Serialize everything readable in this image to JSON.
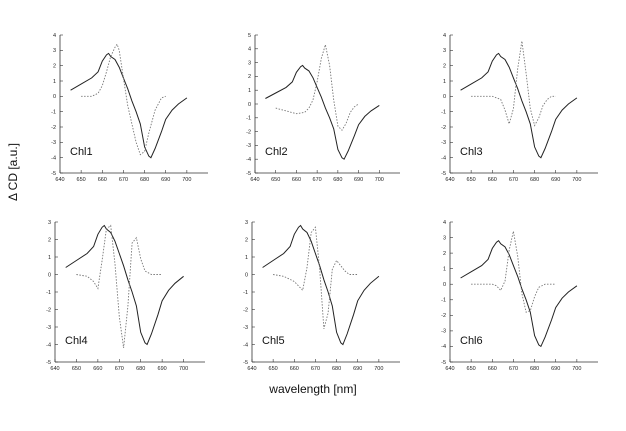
{
  "figure": {
    "ylabel": "Δ CD [a.u.]",
    "xlabel": "wavelength [nm]"
  },
  "chart_data": [
    {
      "type": "line",
      "panel": "Chl1",
      "label": "Chl1",
      "xlim": [
        640,
        710
      ],
      "ylim": [
        -5,
        4
      ],
      "xticks": [
        640,
        650,
        660,
        670,
        680,
        690,
        700
      ],
      "yticks": [
        -5,
        -4,
        -3,
        -2,
        -1,
        0,
        1,
        2,
        3,
        4
      ],
      "series": [
        {
          "style": "solid",
          "x": [
            645,
            650,
            655,
            658,
            660,
            662,
            663,
            664,
            666,
            668,
            670,
            672,
            674,
            676,
            678,
            680,
            682,
            683,
            685,
            688,
            690,
            693,
            696,
            700
          ],
          "y": [
            0.4,
            0.8,
            1.2,
            1.6,
            2.3,
            2.7,
            2.8,
            2.6,
            2.4,
            1.9,
            1.2,
            0.5,
            -0.3,
            -1.0,
            -1.8,
            -3.3,
            -3.9,
            -4.0,
            -3.4,
            -2.3,
            -1.5,
            -0.9,
            -0.5,
            -0.1
          ]
        },
        {
          "style": "dotted",
          "x": [
            650,
            655,
            658,
            660,
            662,
            664,
            666,
            667,
            668,
            670,
            672,
            674,
            676,
            678,
            680,
            682,
            685,
            688,
            690
          ],
          "y": [
            0.0,
            0.0,
            0.2,
            0.7,
            1.6,
            2.6,
            3.2,
            3.4,
            3.0,
            1.2,
            -0.6,
            -1.8,
            -3.0,
            -3.8,
            -3.6,
            -2.4,
            -0.9,
            -0.1,
            0.0
          ]
        }
      ]
    },
    {
      "type": "line",
      "panel": "Chl2",
      "label": "Chl2",
      "xlim": [
        640,
        710
      ],
      "ylim": [
        -5,
        5
      ],
      "xticks": [
        640,
        650,
        660,
        670,
        680,
        690,
        700
      ],
      "yticks": [
        -5,
        -4,
        -3,
        -2,
        -1,
        0,
        1,
        2,
        3,
        4,
        5
      ],
      "series": [
        {
          "style": "solid",
          "x": [
            645,
            650,
            655,
            658,
            660,
            662,
            663,
            664,
            666,
            668,
            670,
            672,
            674,
            676,
            678,
            680,
            682,
            683,
            685,
            688,
            690,
            693,
            696,
            700
          ],
          "y": [
            0.4,
            0.8,
            1.2,
            1.6,
            2.3,
            2.7,
            2.8,
            2.6,
            2.4,
            1.9,
            1.2,
            0.5,
            -0.3,
            -1.0,
            -1.8,
            -3.3,
            -3.9,
            -4.0,
            -3.4,
            -2.3,
            -1.5,
            -0.9,
            -0.5,
            -0.1
          ]
        },
        {
          "style": "dotted",
          "x": [
            650,
            655,
            660,
            664,
            666,
            668,
            670,
            672,
            674,
            676,
            678,
            680,
            682,
            684,
            686,
            688,
            690
          ],
          "y": [
            -0.3,
            -0.5,
            -0.7,
            -0.6,
            -0.3,
            0.3,
            1.6,
            3.3,
            4.3,
            2.8,
            0.3,
            -1.6,
            -1.9,
            -1.4,
            -0.6,
            -0.2,
            0.0
          ]
        }
      ]
    },
    {
      "type": "line",
      "panel": "Chl3",
      "label": "Chl3",
      "xlim": [
        640,
        710
      ],
      "ylim": [
        -5,
        4
      ],
      "xticks": [
        640,
        650,
        660,
        670,
        680,
        690,
        700
      ],
      "yticks": [
        -5,
        -4,
        -3,
        -2,
        -1,
        0,
        1,
        2,
        3,
        4
      ],
      "series": [
        {
          "style": "solid",
          "x": [
            645,
            650,
            655,
            658,
            660,
            662,
            663,
            664,
            666,
            668,
            670,
            672,
            674,
            676,
            678,
            680,
            682,
            683,
            685,
            688,
            690,
            693,
            696,
            700
          ],
          "y": [
            0.4,
            0.8,
            1.2,
            1.6,
            2.3,
            2.7,
            2.8,
            2.6,
            2.4,
            1.9,
            1.2,
            0.5,
            -0.3,
            -1.0,
            -1.8,
            -3.3,
            -3.9,
            -4.0,
            -3.4,
            -2.3,
            -1.5,
            -0.9,
            -0.5,
            -0.1
          ]
        },
        {
          "style": "dotted",
          "x": [
            650,
            655,
            660,
            664,
            666,
            668,
            670,
            672,
            674,
            676,
            678,
            680,
            682,
            684,
            686,
            688,
            690
          ],
          "y": [
            0.0,
            0.0,
            0.0,
            -0.2,
            -0.9,
            -1.8,
            -0.8,
            1.8,
            3.6,
            1.5,
            -0.8,
            -1.9,
            -1.4,
            -0.6,
            -0.2,
            0.0,
            0.0
          ]
        }
      ]
    },
    {
      "type": "line",
      "panel": "Chl4",
      "label": "Chl4",
      "xlim": [
        640,
        710
      ],
      "ylim": [
        -5,
        3
      ],
      "xticks": [
        640,
        650,
        660,
        670,
        680,
        690,
        700
      ],
      "yticks": [
        -5,
        -4,
        -3,
        -2,
        -1,
        0,
        1,
        2,
        3
      ],
      "series": [
        {
          "style": "solid",
          "x": [
            645,
            650,
            655,
            658,
            660,
            662,
            663,
            664,
            666,
            668,
            670,
            672,
            674,
            676,
            678,
            680,
            682,
            683,
            685,
            688,
            690,
            693,
            696,
            700
          ],
          "y": [
            0.4,
            0.8,
            1.2,
            1.6,
            2.3,
            2.7,
            2.8,
            2.6,
            2.4,
            1.9,
            1.2,
            0.5,
            -0.3,
            -1.0,
            -1.8,
            -3.3,
            -3.9,
            -4.0,
            -3.4,
            -2.3,
            -1.5,
            -0.9,
            -0.5,
            -0.1
          ]
        },
        {
          "style": "dotted",
          "x": [
            650,
            655,
            658,
            660,
            662,
            664,
            666,
            668,
            670,
            672,
            674,
            676,
            678,
            680,
            682,
            685,
            688,
            690
          ],
          "y": [
            0.0,
            -0.1,
            -0.4,
            -0.8,
            0.8,
            2.6,
            2.8,
            0.6,
            -2.4,
            -4.2,
            -1.8,
            1.8,
            2.1,
            0.9,
            0.2,
            0.0,
            0.0,
            0.0
          ]
        }
      ]
    },
    {
      "type": "line",
      "panel": "Chl5",
      "label": "Chl5",
      "xlim": [
        640,
        710
      ],
      "ylim": [
        -5,
        3
      ],
      "xticks": [
        640,
        650,
        660,
        670,
        680,
        690,
        700
      ],
      "yticks": [
        -5,
        -4,
        -3,
        -2,
        -1,
        0,
        1,
        2,
        3
      ],
      "series": [
        {
          "style": "solid",
          "x": [
            645,
            650,
            655,
            658,
            660,
            662,
            663,
            664,
            666,
            668,
            670,
            672,
            674,
            676,
            678,
            680,
            682,
            683,
            685,
            688,
            690,
            693,
            696,
            700
          ],
          "y": [
            0.4,
            0.8,
            1.2,
            1.6,
            2.3,
            2.7,
            2.8,
            2.6,
            2.4,
            1.9,
            1.2,
            0.5,
            -0.3,
            -1.0,
            -1.8,
            -3.3,
            -3.9,
            -4.0,
            -3.4,
            -2.3,
            -1.5,
            -0.9,
            -0.5,
            -0.1
          ]
        },
        {
          "style": "dotted",
          "x": [
            650,
            655,
            660,
            664,
            666,
            668,
            670,
            672,
            674,
            676,
            678,
            680,
            682,
            684,
            686,
            688,
            690
          ],
          "y": [
            0.0,
            -0.1,
            -0.4,
            -0.9,
            0.4,
            2.4,
            2.7,
            0.3,
            -3.1,
            -2.2,
            0.3,
            0.8,
            0.5,
            0.2,
            0.0,
            0.0,
            0.0
          ]
        }
      ]
    },
    {
      "type": "line",
      "panel": "Chl6",
      "label": "Chl6",
      "xlim": [
        640,
        710
      ],
      "ylim": [
        -5,
        4
      ],
      "xticks": [
        640,
        650,
        660,
        670,
        680,
        690,
        700
      ],
      "yticks": [
        -5,
        -4,
        -3,
        -2,
        -1,
        0,
        1,
        2,
        3,
        4
      ],
      "series": [
        {
          "style": "solid",
          "x": [
            645,
            650,
            655,
            658,
            660,
            662,
            663,
            664,
            666,
            668,
            670,
            672,
            674,
            676,
            678,
            680,
            682,
            683,
            685,
            688,
            690,
            693,
            696,
            700
          ],
          "y": [
            0.4,
            0.8,
            1.2,
            1.6,
            2.3,
            2.7,
            2.8,
            2.6,
            2.4,
            1.9,
            1.2,
            0.5,
            -0.3,
            -1.0,
            -1.8,
            -3.3,
            -3.9,
            -4.0,
            -3.4,
            -2.3,
            -1.5,
            -0.9,
            -0.5,
            -0.1
          ]
        },
        {
          "style": "dotted",
          "x": [
            650,
            655,
            658,
            660,
            662,
            664,
            666,
            668,
            670,
            672,
            674,
            676,
            678,
            680,
            682,
            685,
            688,
            690
          ],
          "y": [
            0.0,
            0.0,
            0.0,
            0.0,
            -0.1,
            -0.4,
            0.2,
            2.2,
            3.4,
            1.8,
            -0.6,
            -1.8,
            -1.7,
            -0.8,
            -0.2,
            0.0,
            0.0,
            0.0
          ]
        }
      ]
    }
  ]
}
